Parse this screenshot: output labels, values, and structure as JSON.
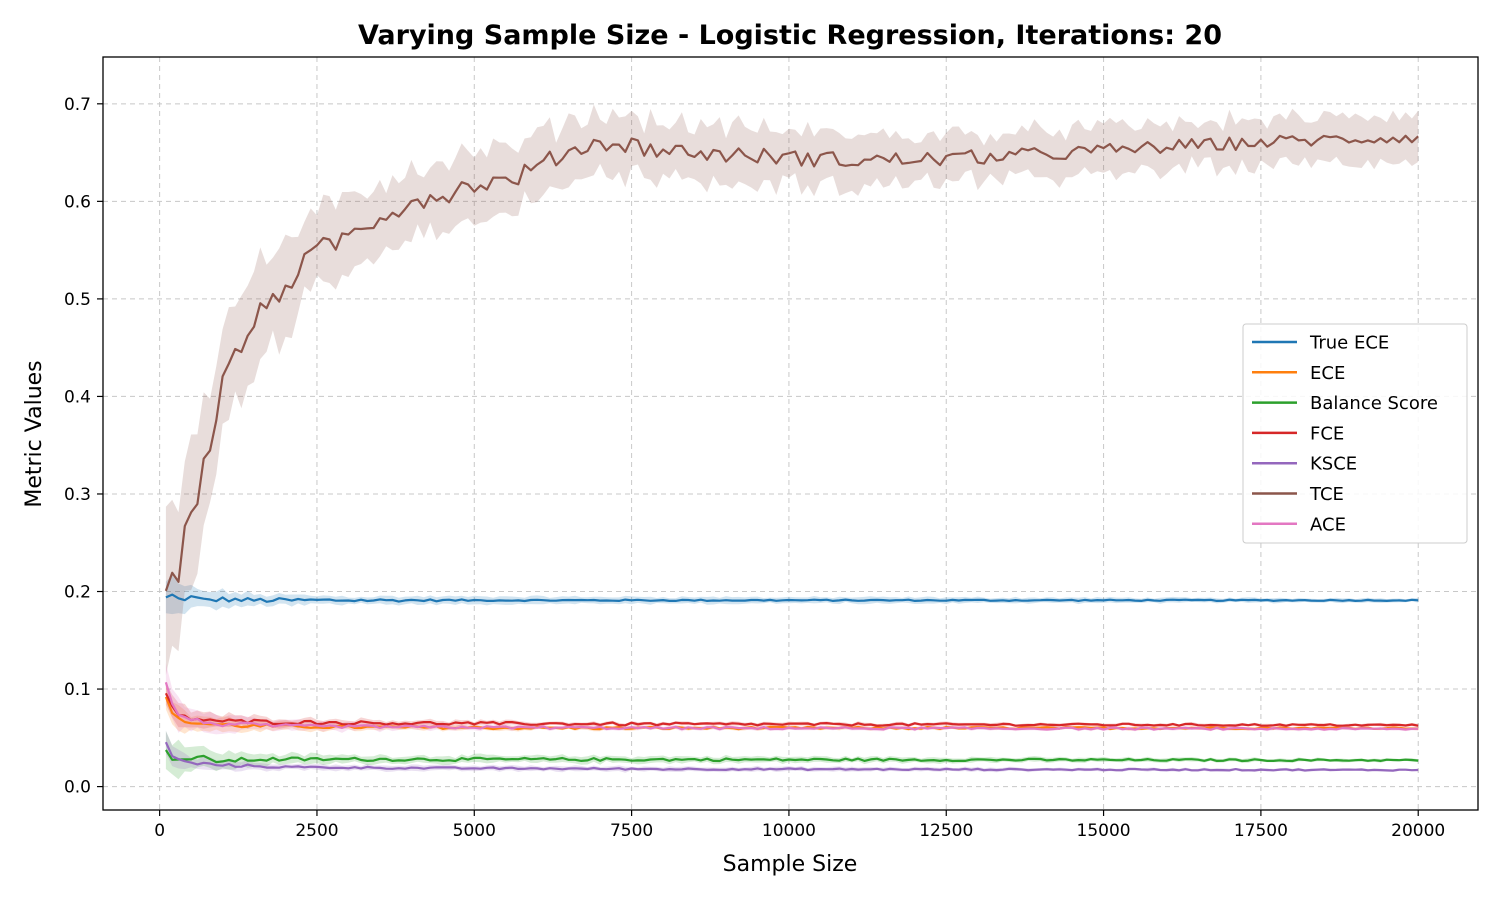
{
  "chart_data": {
    "type": "line",
    "title": "Varying Sample Size - Logistic Regression, Iterations: 20",
    "xlabel": "Sample Size",
    "ylabel": "Metric Values",
    "xlim": [
      -900,
      20950
    ],
    "ylim": [
      -0.024,
      0.748
    ],
    "xticks": [
      0,
      2500,
      5000,
      7500,
      10000,
      12500,
      15000,
      17500,
      20000
    ],
    "yticks": [
      0.0,
      0.1,
      0.2,
      0.3,
      0.4,
      0.5,
      0.6,
      0.7
    ],
    "ytick_labels": [
      "0.0",
      "0.1",
      "0.2",
      "0.3",
      "0.4",
      "0.5",
      "0.6",
      "0.7"
    ],
    "grid": true,
    "legend_position": "center-right",
    "x_start": 100,
    "x_step": 100,
    "x_end": 20000,
    "series": [
      {
        "name": "True ECE",
        "color": "#1f77b4",
        "knots": [
          [
            100,
            0.193
          ],
          [
            200,
            0.196
          ],
          [
            300,
            0.192
          ],
          [
            500,
            0.194
          ],
          [
            700,
            0.191
          ],
          [
            1000,
            0.192
          ],
          [
            1500,
            0.191
          ],
          [
            2000,
            0.191
          ],
          [
            3000,
            0.191
          ],
          [
            20000,
            0.191
          ]
        ],
        "band": [
          [
            100,
            0.018
          ],
          [
            500,
            0.01
          ],
          [
            1500,
            0.006
          ],
          [
            3000,
            0.004
          ],
          [
            20000,
            0.002
          ]
        ],
        "noise": [
          [
            100,
            0.003
          ],
          [
            2500,
            0.002
          ],
          [
            5000,
            0.0008
          ],
          [
            20000,
            0.0006
          ]
        ]
      },
      {
        "name": "ECE",
        "color": "#ff7f0e",
        "knots": [
          [
            100,
            0.09
          ],
          [
            200,
            0.078
          ],
          [
            300,
            0.068
          ],
          [
            500,
            0.066
          ],
          [
            800,
            0.064
          ],
          [
            1500,
            0.062
          ],
          [
            3000,
            0.061
          ],
          [
            6000,
            0.06
          ],
          [
            20000,
            0.06
          ]
        ],
        "band": [
          [
            100,
            0.015
          ],
          [
            500,
            0.008
          ],
          [
            2000,
            0.004
          ],
          [
            6000,
            0.002
          ],
          [
            20000,
            0.0015
          ]
        ],
        "noise": [
          [
            100,
            0.003
          ],
          [
            2500,
            0.0015
          ],
          [
            20000,
            0.0008
          ]
        ]
      },
      {
        "name": "Balance Score",
        "color": "#2ca02c",
        "knots": [
          [
            100,
            0.035
          ],
          [
            200,
            0.03
          ],
          [
            400,
            0.028
          ],
          [
            700,
            0.029
          ],
          [
            1000,
            0.026
          ],
          [
            1500,
            0.028
          ],
          [
            3000,
            0.028
          ],
          [
            20000,
            0.027
          ]
        ],
        "band": [
          [
            100,
            0.022
          ],
          [
            500,
            0.012
          ],
          [
            1500,
            0.006
          ],
          [
            3000,
            0.004
          ],
          [
            20000,
            0.0015
          ]
        ],
        "noise": [
          [
            100,
            0.003
          ],
          [
            2500,
            0.0018
          ],
          [
            20000,
            0.0008
          ]
        ]
      },
      {
        "name": "FCE",
        "color": "#d62728",
        "knots": [
          [
            100,
            0.095
          ],
          [
            200,
            0.08
          ],
          [
            300,
            0.072
          ],
          [
            500,
            0.07
          ],
          [
            1000,
            0.067
          ],
          [
            2000,
            0.066
          ],
          [
            4000,
            0.065
          ],
          [
            8000,
            0.064
          ],
          [
            20000,
            0.063
          ]
        ],
        "band": [
          [
            100,
            0.015
          ],
          [
            500,
            0.008
          ],
          [
            2000,
            0.004
          ],
          [
            6000,
            0.002
          ],
          [
            20000,
            0.0015
          ]
        ],
        "noise": [
          [
            100,
            0.003
          ],
          [
            2500,
            0.0018
          ],
          [
            20000,
            0.0008
          ]
        ]
      },
      {
        "name": "KSCE",
        "color": "#9467bd",
        "knots": [
          [
            100,
            0.045
          ],
          [
            200,
            0.032
          ],
          [
            300,
            0.027
          ],
          [
            500,
            0.024
          ],
          [
            1000,
            0.022
          ],
          [
            2000,
            0.02
          ],
          [
            4000,
            0.019
          ],
          [
            8000,
            0.018
          ],
          [
            20000,
            0.017
          ]
        ],
        "band": [
          [
            100,
            0.012
          ],
          [
            500,
            0.006
          ],
          [
            2000,
            0.003
          ],
          [
            20000,
            0.0012
          ]
        ],
        "noise": [
          [
            100,
            0.002
          ],
          [
            2500,
            0.001
          ],
          [
            20000,
            0.0006
          ]
        ]
      },
      {
        "name": "TCE",
        "color": "#8c564b",
        "knots": [
          [
            100,
            0.2
          ],
          [
            200,
            0.225
          ],
          [
            300,
            0.2
          ],
          [
            400,
            0.275
          ],
          [
            600,
            0.3
          ],
          [
            800,
            0.355
          ],
          [
            1000,
            0.41
          ],
          [
            1250,
            0.45
          ],
          [
            1500,
            0.475
          ],
          [
            2000,
            0.515
          ],
          [
            2500,
            0.548
          ],
          [
            3000,
            0.565
          ],
          [
            3500,
            0.585
          ],
          [
            4000,
            0.6
          ],
          [
            4500,
            0.607
          ],
          [
            5000,
            0.618
          ],
          [
            5500,
            0.62
          ],
          [
            6000,
            0.635
          ],
          [
            6500,
            0.652
          ],
          [
            7000,
            0.66
          ],
          [
            7500,
            0.658
          ],
          [
            8000,
            0.652
          ],
          [
            9000,
            0.648
          ],
          [
            10000,
            0.645
          ],
          [
            11000,
            0.642
          ],
          [
            12000,
            0.643
          ],
          [
            13000,
            0.645
          ],
          [
            14000,
            0.648
          ],
          [
            15000,
            0.652
          ],
          [
            16000,
            0.656
          ],
          [
            17000,
            0.659
          ],
          [
            18000,
            0.662
          ],
          [
            19000,
            0.664
          ],
          [
            20000,
            0.666
          ]
        ],
        "band": [
          [
            100,
            0.1
          ],
          [
            600,
            0.07
          ],
          [
            1500,
            0.05
          ],
          [
            3000,
            0.035
          ],
          [
            7000,
            0.03
          ],
          [
            12000,
            0.025
          ],
          [
            20000,
            0.022
          ]
        ],
        "noise": [
          [
            100,
            0.012
          ],
          [
            1000,
            0.014
          ],
          [
            3000,
            0.011
          ],
          [
            7000,
            0.009
          ],
          [
            20000,
            0.006
          ]
        ]
      },
      {
        "name": "ACE",
        "color": "#e377c2",
        "knots": [
          [
            100,
            0.105
          ],
          [
            200,
            0.085
          ],
          [
            300,
            0.075
          ],
          [
            500,
            0.068
          ],
          [
            1000,
            0.064
          ],
          [
            2000,
            0.062
          ],
          [
            4000,
            0.061
          ],
          [
            8000,
            0.06
          ],
          [
            20000,
            0.059
          ]
        ],
        "band": [
          [
            100,
            0.02
          ],
          [
            500,
            0.01
          ],
          [
            2000,
            0.005
          ],
          [
            6000,
            0.002
          ],
          [
            20000,
            0.0015
          ]
        ],
        "noise": [
          [
            100,
            0.003
          ],
          [
            2500,
            0.0015
          ],
          [
            20000,
            0.0008
          ]
        ]
      }
    ]
  }
}
